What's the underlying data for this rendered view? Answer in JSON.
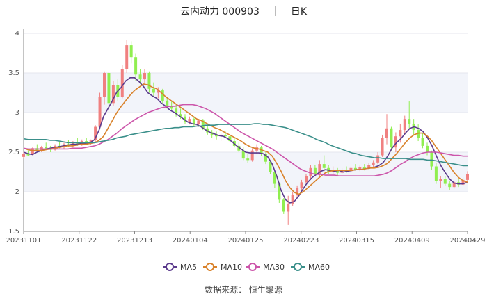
{
  "header": {
    "stock": "云内动力 000903",
    "period": "日K"
  },
  "source": "数据来源： 恒生聚源",
  "colors": {
    "up": "#f08080",
    "down": "#90ee50",
    "ma5": "#5b3a8c",
    "ma10": "#d9822b",
    "ma30": "#cc55aa",
    "ma60": "#3a8f8a"
  },
  "chart_data": {
    "type": "candlestick",
    "title": "云内动力 000903 日K",
    "ylim": [
      1.5,
      4
    ],
    "yticks": [
      "1.5",
      "2",
      "2.5",
      "3",
      "3.5",
      "4"
    ],
    "xticks": [
      "20231101",
      "20231122",
      "20231213",
      "20240104",
      "20240125",
      "20240223",
      "20240315",
      "20240409",
      "20240429"
    ],
    "legend": [
      "MA5",
      "MA10",
      "MA30",
      "MA60"
    ],
    "legend_position": "bottom",
    "candles": [
      {
        "o": 2.44,
        "h": 2.5,
        "l": 2.42,
        "c": 2.48
      },
      {
        "o": 2.48,
        "h": 2.52,
        "l": 2.45,
        "c": 2.46
      },
      {
        "o": 2.47,
        "h": 2.56,
        "l": 2.46,
        "c": 2.55
      },
      {
        "o": 2.55,
        "h": 2.6,
        "l": 2.5,
        "c": 2.52
      },
      {
        "o": 2.52,
        "h": 2.58,
        "l": 2.5,
        "c": 2.57
      },
      {
        "o": 2.57,
        "h": 2.62,
        "l": 2.53,
        "c": 2.55
      },
      {
        "o": 2.55,
        "h": 2.58,
        "l": 2.5,
        "c": 2.53
      },
      {
        "o": 2.53,
        "h": 2.6,
        "l": 2.52,
        "c": 2.58
      },
      {
        "o": 2.58,
        "h": 2.63,
        "l": 2.55,
        "c": 2.56
      },
      {
        "o": 2.56,
        "h": 2.62,
        "l": 2.54,
        "c": 2.6
      },
      {
        "o": 2.6,
        "h": 2.65,
        "l": 2.57,
        "c": 2.58
      },
      {
        "o": 2.58,
        "h": 2.64,
        "l": 2.56,
        "c": 2.63
      },
      {
        "o": 2.63,
        "h": 2.68,
        "l": 2.58,
        "c": 2.6
      },
      {
        "o": 2.6,
        "h": 2.66,
        "l": 2.58,
        "c": 2.64
      },
      {
        "o": 2.64,
        "h": 2.68,
        "l": 2.6,
        "c": 2.61
      },
      {
        "o": 2.61,
        "h": 2.66,
        "l": 2.59,
        "c": 2.65
      },
      {
        "o": 2.65,
        "h": 2.84,
        "l": 2.63,
        "c": 2.82
      },
      {
        "o": 2.82,
        "h": 3.25,
        "l": 2.8,
        "c": 3.2
      },
      {
        "o": 3.2,
        "h": 3.52,
        "l": 3.1,
        "c": 3.5
      },
      {
        "o": 3.5,
        "h": 3.52,
        "l": 3.05,
        "c": 3.12
      },
      {
        "o": 3.12,
        "h": 3.4,
        "l": 3.08,
        "c": 3.35
      },
      {
        "o": 3.35,
        "h": 3.42,
        "l": 3.15,
        "c": 3.2
      },
      {
        "o": 3.2,
        "h": 3.6,
        "l": 3.18,
        "c": 3.55
      },
      {
        "o": 3.55,
        "h": 3.92,
        "l": 3.5,
        "c": 3.85
      },
      {
        "o": 3.85,
        "h": 3.9,
        "l": 3.62,
        "c": 3.7
      },
      {
        "o": 3.7,
        "h": 3.75,
        "l": 3.4,
        "c": 3.48
      },
      {
        "o": 3.48,
        "h": 3.55,
        "l": 3.36,
        "c": 3.42
      },
      {
        "o": 3.42,
        "h": 3.55,
        "l": 3.35,
        "c": 3.5
      },
      {
        "o": 3.5,
        "h": 3.52,
        "l": 3.25,
        "c": 3.3
      },
      {
        "o": 3.3,
        "h": 3.38,
        "l": 3.2,
        "c": 3.25
      },
      {
        "o": 3.25,
        "h": 3.32,
        "l": 3.18,
        "c": 3.28
      },
      {
        "o": 3.28,
        "h": 3.3,
        "l": 3.12,
        "c": 3.15
      },
      {
        "o": 3.15,
        "h": 3.2,
        "l": 3.05,
        "c": 3.08
      },
      {
        "o": 3.08,
        "h": 3.15,
        "l": 3.02,
        "c": 3.05
      },
      {
        "o": 3.05,
        "h": 3.1,
        "l": 2.95,
        "c": 2.98
      },
      {
        "o": 2.98,
        "h": 3.05,
        "l": 2.92,
        "c": 2.95
      },
      {
        "o": 2.95,
        "h": 2.98,
        "l": 2.86,
        "c": 2.88
      },
      {
        "o": 2.88,
        "h": 2.95,
        "l": 2.85,
        "c": 2.92
      },
      {
        "o": 2.92,
        "h": 2.95,
        "l": 2.82,
        "c": 2.85
      },
      {
        "o": 2.85,
        "h": 2.92,
        "l": 2.82,
        "c": 2.9
      },
      {
        "o": 2.9,
        "h": 2.92,
        "l": 2.78,
        "c": 2.8
      },
      {
        "o": 2.8,
        "h": 2.85,
        "l": 2.72,
        "c": 2.75
      },
      {
        "o": 2.75,
        "h": 2.78,
        "l": 2.68,
        "c": 2.72
      },
      {
        "o": 2.72,
        "h": 2.76,
        "l": 2.66,
        "c": 2.7
      },
      {
        "o": 2.7,
        "h": 2.74,
        "l": 2.64,
        "c": 2.72
      },
      {
        "o": 2.72,
        "h": 2.76,
        "l": 2.68,
        "c": 2.7
      },
      {
        "o": 2.7,
        "h": 2.72,
        "l": 2.62,
        "c": 2.64
      },
      {
        "o": 2.64,
        "h": 2.68,
        "l": 2.56,
        "c": 2.58
      },
      {
        "o": 2.58,
        "h": 2.62,
        "l": 2.5,
        "c": 2.52
      },
      {
        "o": 2.52,
        "h": 2.56,
        "l": 2.4,
        "c": 2.42
      },
      {
        "o": 2.42,
        "h": 2.48,
        "l": 2.36,
        "c": 2.4
      },
      {
        "o": 2.4,
        "h": 2.55,
        "l": 2.38,
        "c": 2.52
      },
      {
        "o": 2.52,
        "h": 2.6,
        "l": 2.48,
        "c": 2.56
      },
      {
        "o": 2.56,
        "h": 2.58,
        "l": 2.45,
        "c": 2.48
      },
      {
        "o": 2.48,
        "h": 2.5,
        "l": 2.35,
        "c": 2.38
      },
      {
        "o": 2.38,
        "h": 2.4,
        "l": 2.22,
        "c": 2.25
      },
      {
        "o": 2.25,
        "h": 2.28,
        "l": 2.05,
        "c": 2.1
      },
      {
        "o": 2.1,
        "h": 2.12,
        "l": 1.86,
        "c": 1.9
      },
      {
        "o": 1.9,
        "h": 1.92,
        "l": 1.72,
        "c": 1.75
      },
      {
        "o": 1.75,
        "h": 1.95,
        "l": 1.58,
        "c": 1.85
      },
      {
        "o": 1.85,
        "h": 2.0,
        "l": 1.82,
        "c": 1.96
      },
      {
        "o": 1.96,
        "h": 2.08,
        "l": 1.94,
        "c": 2.05
      },
      {
        "o": 2.05,
        "h": 2.15,
        "l": 2.02,
        "c": 2.12
      },
      {
        "o": 2.12,
        "h": 2.22,
        "l": 2.1,
        "c": 2.2
      },
      {
        "o": 2.2,
        "h": 2.34,
        "l": 2.15,
        "c": 2.3
      },
      {
        "o": 2.3,
        "h": 2.34,
        "l": 2.2,
        "c": 2.22
      },
      {
        "o": 2.22,
        "h": 2.4,
        "l": 2.2,
        "c": 2.35
      },
      {
        "o": 2.35,
        "h": 2.46,
        "l": 2.26,
        "c": 2.3
      },
      {
        "o": 2.3,
        "h": 2.34,
        "l": 2.22,
        "c": 2.25
      },
      {
        "o": 2.25,
        "h": 2.32,
        "l": 2.22,
        "c": 2.28
      },
      {
        "o": 2.28,
        "h": 2.3,
        "l": 2.2,
        "c": 2.24
      },
      {
        "o": 2.24,
        "h": 2.3,
        "l": 2.22,
        "c": 2.28
      },
      {
        "o": 2.28,
        "h": 2.32,
        "l": 2.24,
        "c": 2.26
      },
      {
        "o": 2.26,
        "h": 2.32,
        "l": 2.24,
        "c": 2.3
      },
      {
        "o": 2.3,
        "h": 2.35,
        "l": 2.27,
        "c": 2.28
      },
      {
        "o": 2.28,
        "h": 2.33,
        "l": 2.26,
        "c": 2.31
      },
      {
        "o": 2.31,
        "h": 2.35,
        "l": 2.27,
        "c": 2.29
      },
      {
        "o": 2.29,
        "h": 2.36,
        "l": 2.28,
        "c": 2.34
      },
      {
        "o": 2.34,
        "h": 2.4,
        "l": 2.3,
        "c": 2.37
      },
      {
        "o": 2.37,
        "h": 2.5,
        "l": 2.35,
        "c": 2.46
      },
      {
        "o": 2.46,
        "h": 2.72,
        "l": 2.44,
        "c": 2.68
      },
      {
        "o": 2.68,
        "h": 2.98,
        "l": 2.6,
        "c": 2.8
      },
      {
        "o": 2.8,
        "h": 2.82,
        "l": 2.52,
        "c": 2.56
      },
      {
        "o": 2.56,
        "h": 2.75,
        "l": 2.5,
        "c": 2.7
      },
      {
        "o": 2.7,
        "h": 2.86,
        "l": 2.62,
        "c": 2.78
      },
      {
        "o": 2.78,
        "h": 2.96,
        "l": 2.72,
        "c": 2.92
      },
      {
        "o": 2.92,
        "h": 3.14,
        "l": 2.8,
        "c": 2.86
      },
      {
        "o": 2.86,
        "h": 2.92,
        "l": 2.72,
        "c": 2.78
      },
      {
        "o": 2.78,
        "h": 2.85,
        "l": 2.64,
        "c": 2.68
      },
      {
        "o": 2.68,
        "h": 2.74,
        "l": 2.55,
        "c": 2.58
      },
      {
        "o": 2.58,
        "h": 2.62,
        "l": 2.46,
        "c": 2.5
      },
      {
        "o": 2.5,
        "h": 2.52,
        "l": 2.28,
        "c": 2.32
      },
      {
        "o": 2.32,
        "h": 2.36,
        "l": 2.1,
        "c": 2.14
      },
      {
        "o": 2.14,
        "h": 2.2,
        "l": 2.05,
        "c": 2.16
      },
      {
        "o": 2.16,
        "h": 2.2,
        "l": 2.08,
        "c": 2.1
      },
      {
        "o": 2.1,
        "h": 2.14,
        "l": 2.02,
        "c": 2.06
      },
      {
        "o": 2.06,
        "h": 2.14,
        "l": 2.04,
        "c": 2.12
      },
      {
        "o": 2.12,
        "h": 2.16,
        "l": 2.06,
        "c": 2.09
      },
      {
        "o": 2.09,
        "h": 2.18,
        "l": 2.07,
        "c": 2.15
      },
      {
        "o": 2.15,
        "h": 2.26,
        "l": 2.12,
        "c": 2.22
      }
    ],
    "ma5": [
      2.5,
      2.48,
      2.47,
      2.5,
      2.52,
      2.54,
      2.55,
      2.56,
      2.57,
      2.58,
      2.59,
      2.6,
      2.6,
      2.61,
      2.61,
      2.62,
      2.66,
      2.78,
      2.95,
      3.05,
      3.15,
      3.26,
      3.32,
      3.4,
      3.44,
      3.44,
      3.39,
      3.33,
      3.25,
      3.21,
      3.18,
      3.12,
      3.08,
      3.03,
      3.0,
      2.96,
      2.92,
      2.88,
      2.86,
      2.85,
      2.82,
      2.78,
      2.75,
      2.73,
      2.71,
      2.7,
      2.67,
      2.63,
      2.58,
      2.54,
      2.5,
      2.49,
      2.49,
      2.49,
      2.48,
      2.44,
      2.35,
      2.2,
      2.02,
      1.9,
      1.86,
      1.88,
      1.95,
      2.04,
      2.12,
      2.18,
      2.22,
      2.26,
      2.28,
      2.27,
      2.26,
      2.27,
      2.25,
      2.26,
      2.27,
      2.28,
      2.28,
      2.29,
      2.3,
      2.31,
      2.33,
      2.37,
      2.45,
      2.55,
      2.62,
      2.67,
      2.74,
      2.8,
      2.82,
      2.8,
      2.76,
      2.68,
      2.58,
      2.45,
      2.33,
      2.24,
      2.16,
      2.11,
      2.1,
      2.1,
      2.12
    ],
    "ma10": [
      2.55,
      2.53,
      2.52,
      2.52,
      2.52,
      2.53,
      2.54,
      2.55,
      2.56,
      2.57,
      2.58,
      2.58,
      2.59,
      2.6,
      2.6,
      2.61,
      2.62,
      2.65,
      2.7,
      2.8,
      2.9,
      3.0,
      3.08,
      3.15,
      3.22,
      3.28,
      3.32,
      3.36,
      3.35,
      3.32,
      3.3,
      3.25,
      3.2,
      3.16,
      3.12,
      3.08,
      3.04,
      3.0,
      2.96,
      2.92,
      2.9,
      2.87,
      2.84,
      2.81,
      2.79,
      2.76,
      2.73,
      2.7,
      2.67,
      2.64,
      2.6,
      2.57,
      2.55,
      2.54,
      2.52,
      2.5,
      2.45,
      2.36,
      2.26,
      2.14,
      2.05,
      1.99,
      1.97,
      2.0,
      2.05,
      2.1,
      2.15,
      2.2,
      2.24,
      2.26,
      2.27,
      2.27,
      2.27,
      2.27,
      2.27,
      2.28,
      2.28,
      2.29,
      2.3,
      2.3,
      2.31,
      2.33,
      2.36,
      2.42,
      2.48,
      2.55,
      2.62,
      2.68,
      2.72,
      2.74,
      2.74,
      2.7,
      2.64,
      2.56,
      2.48,
      2.4,
      2.32,
      2.24,
      2.18,
      2.14,
      2.12
    ],
    "ma30": [
      2.55,
      2.54,
      2.54,
      2.54,
      2.54,
      2.54,
      2.54,
      2.54,
      2.54,
      2.54,
      2.54,
      2.55,
      2.55,
      2.55,
      2.56,
      2.57,
      2.58,
      2.6,
      2.63,
      2.66,
      2.7,
      2.74,
      2.79,
      2.83,
      2.87,
      2.91,
      2.94,
      2.97,
      3.0,
      3.02,
      3.04,
      3.06,
      3.07,
      3.08,
      3.08,
      3.09,
      3.1,
      3.1,
      3.1,
      3.09,
      3.07,
      3.05,
      3.02,
      2.99,
      2.95,
      2.91,
      2.87,
      2.83,
      2.79,
      2.75,
      2.72,
      2.69,
      2.66,
      2.63,
      2.6,
      2.57,
      2.54,
      2.5,
      2.46,
      2.42,
      2.38,
      2.34,
      2.3,
      2.27,
      2.25,
      2.23,
      2.22,
      2.22,
      2.21,
      2.21,
      2.21,
      2.2,
      2.2,
      2.2,
      2.2,
      2.2,
      2.2,
      2.2,
      2.2,
      2.2,
      2.21,
      2.22,
      2.24,
      2.27,
      2.31,
      2.35,
      2.38,
      2.42,
      2.45,
      2.47,
      2.49,
      2.5,
      2.5,
      2.5,
      2.49,
      2.48,
      2.47,
      2.46,
      2.46,
      2.45,
      2.45
    ],
    "ma60": [
      2.67,
      2.66,
      2.66,
      2.66,
      2.66,
      2.66,
      2.65,
      2.65,
      2.64,
      2.63,
      2.62,
      2.62,
      2.62,
      2.62,
      2.62,
      2.62,
      2.62,
      2.63,
      2.64,
      2.65,
      2.66,
      2.68,
      2.69,
      2.7,
      2.72,
      2.73,
      2.74,
      2.75,
      2.76,
      2.77,
      2.78,
      2.79,
      2.8,
      2.8,
      2.81,
      2.81,
      2.82,
      2.82,
      2.82,
      2.83,
      2.83,
      2.84,
      2.84,
      2.84,
      2.85,
      2.85,
      2.85,
      2.85,
      2.85,
      2.85,
      2.85,
      2.85,
      2.86,
      2.86,
      2.85,
      2.85,
      2.84,
      2.83,
      2.82,
      2.81,
      2.79,
      2.77,
      2.75,
      2.73,
      2.71,
      2.69,
      2.66,
      2.64,
      2.62,
      2.59,
      2.57,
      2.55,
      2.53,
      2.51,
      2.49,
      2.48,
      2.46,
      2.45,
      2.44,
      2.43,
      2.43,
      2.42,
      2.42,
      2.42,
      2.42,
      2.42,
      2.42,
      2.41,
      2.41,
      2.41,
      2.41,
      2.4,
      2.4,
      2.39,
      2.38,
      2.37,
      2.36,
      2.35,
      2.34,
      2.33,
      2.33
    ]
  }
}
